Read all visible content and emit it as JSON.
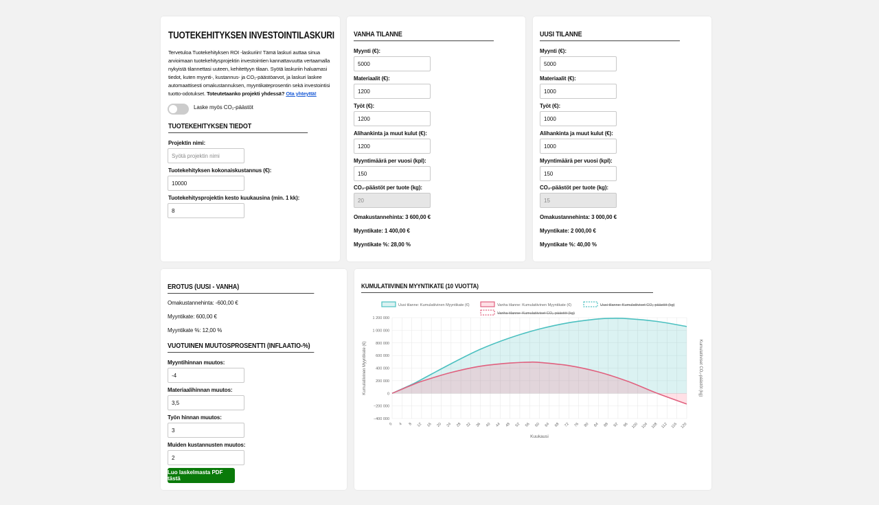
{
  "intro_card": {
    "title": "TUOTEKEHITYKSEN INVESTOINTILASKURI",
    "intro_text": "Tervetuloa Tuotekehityksen ROI -laskuriin! Tämä laskuri auttaa sinua arvioimaan tuotekehitysprojektin investointien kannattavuutta vertaamalla nykyistä tilannettasi uuteen, kehitettyyn tilaan. Syötä laskuriin haluamasi tiedot, kuten myynti-, kustannus- ja CO₂-päästöarvot, ja laskuri laskee automaattisesti omakustannuksen, myyntikateprosentin sekä investointisi tuotto-odotukset.",
    "cta_question": "Toteutetaanko projekti yhdessä?",
    "cta_link": "Ota yhteyttä!",
    "toggle_label": "Laske myös CO₂-päästöt",
    "section_title": "TUOTEKEHITYKSEN TIEDOT",
    "project_name_label": "Projektin nimi:",
    "project_name_placeholder": "Syötä projektin nimi",
    "total_cost_label": "Tuotekehityksen kokonaiskustannus (€):",
    "total_cost_value": "10000",
    "duration_label": "Tuotekehitysprojektin kesto kuukausina (min. 1 kk):",
    "duration_value": "8"
  },
  "old": {
    "title": "VANHA TILANNE",
    "sales_label": "Myynti (€):",
    "sales_value": "5000",
    "materials_label": "Materiaalit (€):",
    "materials_value": "1200",
    "work_label": "Työt (€):",
    "work_value": "1200",
    "sub_label": "Alihankinta ja muut kulut (€):",
    "sub_value": "1200",
    "volume_label": "Myyntimäärä per vuosi (kpl):",
    "volume_value": "150",
    "co2_label": "CO₂-päästöt per tuote (kg):",
    "co2_value": "20",
    "cost_result": "Omakustannehinta: 3 600,00 €",
    "margin_result": "Myyntikate: 1 400,00 €",
    "margin_pct_result": "Myyntikate %: 28,00 %"
  },
  "new": {
    "title": "UUSI TILANNE",
    "sales_label": "Myynti (€):",
    "sales_value": "5000",
    "materials_label": "Materiaalit (€):",
    "materials_value": "1000",
    "work_label": "Työt (€):",
    "work_value": "1000",
    "sub_label": "Alihankinta ja muut kulut (€):",
    "sub_value": "1000",
    "volume_label": "Myyntimäärä per vuosi (kpl):",
    "volume_value": "150",
    "co2_label": "CO₂-päästöt per tuote (kg):",
    "co2_value": "15",
    "cost_result": "Omakustannehinta: 3 000,00 €",
    "margin_result": "Myyntikate: 2 000,00 €",
    "margin_pct_result": "Myyntikate %: 40,00 %"
  },
  "diff": {
    "title": "EROTUS (UUSI - VANHA)",
    "cost": "Omakustannehinta: -600,00 €",
    "margin": "Myyntikate: 600,00 €",
    "margin_pct": "Myyntikate %: 12,00 %",
    "inflation_title": "VUOTUINEN MUUTOSPROSENTTI (INFLAATIO-%)",
    "sales_change_label": "Myyntihinnan muutos:",
    "sales_change_value": "-4",
    "material_change_label": "Materiaalihinnan muutos:",
    "material_change_value": "3,5",
    "work_change_label": "Työn hinnan muutos:",
    "work_change_value": "3",
    "other_change_label": "Muiden kustannusten muutos:",
    "other_change_value": "2",
    "pdf_button": "Luo laskelmasta PDF tästä"
  },
  "chart_card": {
    "title": "KUMULATIIVINEN MYYNTIKATE (10 VUOTTA)"
  },
  "chart_data": {
    "type": "area",
    "xlabel": "Kuukausi",
    "ylabel": "Kumulatiivinen Myyntikate (€)",
    "y2label": "Kumulatiiviset CO₂-päästöt (kg)",
    "ylim": [
      -400000,
      1200000
    ],
    "xlim": [
      0,
      120
    ],
    "x_ticks": [
      0,
      4,
      8,
      12,
      16,
      20,
      24,
      28,
      32,
      36,
      40,
      44,
      48,
      52,
      56,
      60,
      64,
      68,
      72,
      76,
      80,
      84,
      88,
      92,
      96,
      100,
      104,
      108,
      112,
      116,
      120
    ],
    "y_ticks": [
      -400000,
      -200000,
      0,
      200000,
      400000,
      600000,
      800000,
      1000000,
      1200000
    ],
    "y_tick_labels": [
      "−400 000",
      "−200 000",
      "0",
      "200 000",
      "400 000",
      "600 000",
      "800 000",
      "1 000 000",
      "1 200 000"
    ],
    "grid": true,
    "legend_position": "top",
    "series": [
      {
        "name": "Uusi tilanne: Kumulatiivinen Myyntikate (€)",
        "color": "#4bc0c0",
        "fill": "rgba(75,192,192,0.2)",
        "hidden": false,
        "x": [
          0,
          8,
          12,
          24,
          36,
          48,
          60,
          72,
          84,
          90,
          96,
          108,
          120
        ],
        "y": [
          0,
          140000,
          220000,
          470000,
          700000,
          880000,
          1020000,
          1120000,
          1180000,
          1190000,
          1185000,
          1140000,
          1060000
        ]
      },
      {
        "name": "Vanha tilanne: Kumulatiivinen Myyntikate (€)",
        "color": "#e0607e",
        "fill": "rgba(255,99,132,0.2)",
        "hidden": false,
        "x": [
          0,
          8,
          12,
          24,
          36,
          48,
          56,
          60,
          72,
          84,
          96,
          108,
          120
        ],
        "y": [
          0,
          130000,
          190000,
          330000,
          430000,
          480000,
          495000,
          490000,
          440000,
          340000,
          190000,
          0,
          -170000
        ]
      },
      {
        "name": "Uusi tilanne: Kumulatiiviset CO₂-päästöt (kg)",
        "color": "#4bc0c0",
        "dashed": true,
        "hidden": true,
        "x": [],
        "y": []
      },
      {
        "name": "Vanha tilanne: Kumulatiiviset CO₂-päästöt (kg)",
        "color": "#e0607e",
        "dashed": true,
        "hidden": true,
        "x": [],
        "y": []
      }
    ]
  }
}
